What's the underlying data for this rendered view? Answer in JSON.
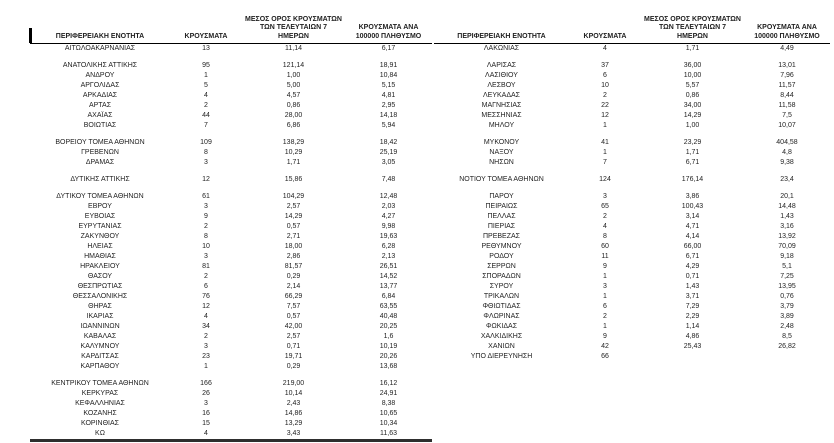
{
  "colors": {
    "text": "#1f1f1f",
    "rule": "#000000",
    "thick_rule": "#2e2e2e",
    "background": "#ffffff"
  },
  "headers": {
    "region": "ΠΕΡΙΦΕΡΕΙΑΚΗ ΕΝΟΤΗΤΑ",
    "cases": "ΚΡΟΥΣΜΑΤΑ",
    "avg7": "ΜΕΣΟΣ ΟΡΟΣ ΚΡΟΥΣΜΑΤΩΝ ΤΩΝ ΤΕΛΕΥΤΑΙΩΝ 7 ΗΜΕΡΩΝ",
    "per100k": "ΚΡΟΥΣΜΑΤΑ ΑΝΑ 100000 ΠΛΗΘΥΣΜΟ"
  },
  "left_table": {
    "groups": [
      [
        {
          "region": "ΑΙΤΩΛΟΑΚΑΡΝΑΝΙΑΣ",
          "cases": "13",
          "avg7": "11,14",
          "per100k": "6,17"
        }
      ],
      [
        {
          "region": "ΑΝΑΤΟΛΙΚΗΣ ΑΤΤΙΚΗΣ",
          "cases": "95",
          "avg7": "121,14",
          "per100k": "18,91"
        },
        {
          "region": "ΑΝΔΡΟΥ",
          "cases": "1",
          "avg7": "1,00",
          "per100k": "10,84"
        },
        {
          "region": "ΑΡΓΟΛΙΔΑΣ",
          "cases": "5",
          "avg7": "5,00",
          "per100k": "5,15"
        },
        {
          "region": "ΑΡΚΑΔΙΑΣ",
          "cases": "4",
          "avg7": "4,57",
          "per100k": "4,81"
        },
        {
          "region": "ΑΡΤΑΣ",
          "cases": "2",
          "avg7": "0,86",
          "per100k": "2,95"
        },
        {
          "region": "ΑΧΑΪΑΣ",
          "cases": "44",
          "avg7": "28,00",
          "per100k": "14,18"
        },
        {
          "region": "ΒΟΙΩΤΙΑΣ",
          "cases": "7",
          "avg7": "6,86",
          "per100k": "5,94"
        }
      ],
      [
        {
          "region": "ΒΟΡΕΙΟΥ ΤΟΜΕΑ ΑΘΗΝΩΝ",
          "cases": "109",
          "avg7": "138,29",
          "per100k": "18,42"
        },
        {
          "region": "ΓΡΕΒΕΝΩΝ",
          "cases": "8",
          "avg7": "10,29",
          "per100k": "25,19"
        },
        {
          "region": "ΔΡΑΜΑΣ",
          "cases": "3",
          "avg7": "1,71",
          "per100k": "3,05"
        }
      ],
      [
        {
          "region": "ΔΥΤΙΚΗΣ ΑΤΤΙΚΗΣ",
          "cases": "12",
          "avg7": "15,86",
          "per100k": "7,48"
        }
      ],
      [
        {
          "region": "ΔΥΤΙΚΟΥ ΤΟΜΕΑ ΑΘΗΝΩΝ",
          "cases": "61",
          "avg7": "104,29",
          "per100k": "12,48"
        },
        {
          "region": "ΕΒΡΟΥ",
          "cases": "3",
          "avg7": "2,57",
          "per100k": "2,03"
        },
        {
          "region": "ΕΥΒΟΙΑΣ",
          "cases": "9",
          "avg7": "14,29",
          "per100k": "4,27"
        },
        {
          "region": "ΕΥΡΥΤΑΝΙΑΣ",
          "cases": "2",
          "avg7": "0,57",
          "per100k": "9,98"
        },
        {
          "region": "ΖΑΚΥΝΘΟΥ",
          "cases": "8",
          "avg7": "2,71",
          "per100k": "19,63"
        },
        {
          "region": "ΗΛΕΙΑΣ",
          "cases": "10",
          "avg7": "18,00",
          "per100k": "6,28"
        },
        {
          "region": "ΗΜΑΘΙΑΣ",
          "cases": "3",
          "avg7": "2,86",
          "per100k": "2,13"
        },
        {
          "region": "ΗΡΑΚΛΕΙΟΥ",
          "cases": "81",
          "avg7": "81,57",
          "per100k": "26,51"
        },
        {
          "region": "ΘΑΣΟΥ",
          "cases": "2",
          "avg7": "0,29",
          "per100k": "14,52"
        },
        {
          "region": "ΘΕΣΠΡΩΤΙΑΣ",
          "cases": "6",
          "avg7": "2,14",
          "per100k": "13,77"
        },
        {
          "region": "ΘΕΣΣΑΛΟΝΙΚΗΣ",
          "cases": "76",
          "avg7": "66,29",
          "per100k": "6,84"
        },
        {
          "region": "ΘΗΡΑΣ",
          "cases": "12",
          "avg7": "7,57",
          "per100k": "63,55"
        },
        {
          "region": "ΙΚΑΡΙΑΣ",
          "cases": "4",
          "avg7": "0,57",
          "per100k": "40,48"
        },
        {
          "region": "ΙΩΑΝΝΙΝΩΝ",
          "cases": "34",
          "avg7": "42,00",
          "per100k": "20,25"
        },
        {
          "region": "ΚΑΒΑΛΑΣ",
          "cases": "2",
          "avg7": "2,57",
          "per100k": "1,6"
        },
        {
          "region": "ΚΑΛΥΜΝΟΥ",
          "cases": "3",
          "avg7": "0,71",
          "per100k": "10,19"
        },
        {
          "region": "ΚΑΡΔΙΤΣΑΣ",
          "cases": "23",
          "avg7": "19,71",
          "per100k": "20,26"
        },
        {
          "region": "ΚΑΡΠΑΘΟΥ",
          "cases": "1",
          "avg7": "0,29",
          "per100k": "13,68"
        }
      ],
      [
        {
          "region": "ΚΕΝΤΡΙΚΟΥ ΤΟΜΕΑ ΑΘΗΝΩΝ",
          "cases": "166",
          "avg7": "219,00",
          "per100k": "16,12"
        },
        {
          "region": "ΚΕΡΚΥΡΑΣ",
          "cases": "26",
          "avg7": "10,14",
          "per100k": "24,91"
        },
        {
          "region": "ΚΕΦΑΛΛΗΝΙΑΣ",
          "cases": "3",
          "avg7": "2,43",
          "per100k": "8,38"
        },
        {
          "region": "ΚΟΖΑΝΗΣ",
          "cases": "16",
          "avg7": "14,86",
          "per100k": "10,65"
        },
        {
          "region": "ΚΟΡΙΝΘΙΑΣ",
          "cases": "15",
          "avg7": "13,29",
          "per100k": "10,34"
        },
        {
          "region": "ΚΩ",
          "cases": "4",
          "avg7": "3,43",
          "per100k": "11,63"
        }
      ]
    ]
  },
  "right_table": {
    "groups": [
      [
        {
          "region": "ΛΑΚΩΝΙΑΣ",
          "cases": "4",
          "avg7": "1,71",
          "per100k": "4,49"
        }
      ],
      [
        {
          "region": "ΛΑΡΙΣΑΣ",
          "cases": "37",
          "avg7": "36,00",
          "per100k": "13,01"
        },
        {
          "region": "ΛΑΣΙΘΙΟΥ",
          "cases": "6",
          "avg7": "10,00",
          "per100k": "7,96"
        },
        {
          "region": "ΛΕΣΒΟΥ",
          "cases": "10",
          "avg7": "5,57",
          "per100k": "11,57"
        },
        {
          "region": "ΛΕΥΚΑΔΑΣ",
          "cases": "2",
          "avg7": "0,86",
          "per100k": "8,44"
        },
        {
          "region": "ΜΑΓΝΗΣΙΑΣ",
          "cases": "22",
          "avg7": "34,00",
          "per100k": "11,58"
        },
        {
          "region": "ΜΕΣΣΗΝΙΑΣ",
          "cases": "12",
          "avg7": "14,29",
          "per100k": "7,5"
        },
        {
          "region": "ΜΗΛΟΥ",
          "cases": "1",
          "avg7": "1,00",
          "per100k": "10,07"
        }
      ],
      [
        {
          "region": "ΜΥΚΟΝΟΥ",
          "cases": "41",
          "avg7": "23,29",
          "per100k": "404,58"
        },
        {
          "region": "ΝΑΞΟΥ",
          "cases": "1",
          "avg7": "1,71",
          "per100k": "4,8"
        },
        {
          "region": "ΝΗΣΩΝ",
          "cases": "7",
          "avg7": "6,71",
          "per100k": "9,38"
        }
      ],
      [
        {
          "region": "ΝΟΤΙΟΥ ΤΟΜΕΑ ΑΘΗΝΩΝ",
          "cases": "124",
          "avg7": "176,14",
          "per100k": "23,4"
        }
      ],
      [
        {
          "region": "ΠΑΡΟΥ",
          "cases": "3",
          "avg7": "3,86",
          "per100k": "20,1"
        },
        {
          "region": "ΠΕΙΡΑΙΩΣ",
          "cases": "65",
          "avg7": "100,43",
          "per100k": "14,48"
        },
        {
          "region": "ΠΕΛΛΑΣ",
          "cases": "2",
          "avg7": "3,14",
          "per100k": "1,43"
        },
        {
          "region": "ΠΙΕΡΙΑΣ",
          "cases": "4",
          "avg7": "4,71",
          "per100k": "3,16"
        },
        {
          "region": "ΠΡΕΒΕΖΑΣ",
          "cases": "8",
          "avg7": "4,14",
          "per100k": "13,92"
        },
        {
          "region": "ΡΕΘΥΜΝΟΥ",
          "cases": "60",
          "avg7": "66,00",
          "per100k": "70,09"
        },
        {
          "region": "ΡΟΔΟΥ",
          "cases": "11",
          "avg7": "6,71",
          "per100k": "9,18"
        },
        {
          "region": "ΣΕΡΡΩΝ",
          "cases": "9",
          "avg7": "4,29",
          "per100k": "5,1"
        },
        {
          "region": "ΣΠΟΡΑΔΩΝ",
          "cases": "1",
          "avg7": "0,71",
          "per100k": "7,25"
        },
        {
          "region": "ΣΥΡΟΥ",
          "cases": "3",
          "avg7": "1,43",
          "per100k": "13,95"
        },
        {
          "region": "ΤΡΙΚΑΛΩΝ",
          "cases": "1",
          "avg7": "3,71",
          "per100k": "0,76"
        },
        {
          "region": "ΦΘΙΩΤΙΔΑΣ",
          "cases": "6",
          "avg7": "7,29",
          "per100k": "3,79"
        },
        {
          "region": "ΦΛΩΡΙΝΑΣ",
          "cases": "2",
          "avg7": "2,29",
          "per100k": "3,89"
        },
        {
          "region": "ΦΩΚΙΔΑΣ",
          "cases": "1",
          "avg7": "1,14",
          "per100k": "2,48"
        },
        {
          "region": "ΧΑΛΚΙΔΙΚΗΣ",
          "cases": "9",
          "avg7": "4,86",
          "per100k": "8,5"
        },
        {
          "region": "ΧΑΝΙΩΝ",
          "cases": "42",
          "avg7": "25,43",
          "per100k": "26,82"
        },
        {
          "region": "ΥΠΟ ΔΙΕΡΕΥΝΗΣΗ",
          "cases": "66",
          "avg7": "",
          "per100k": ""
        }
      ]
    ]
  }
}
